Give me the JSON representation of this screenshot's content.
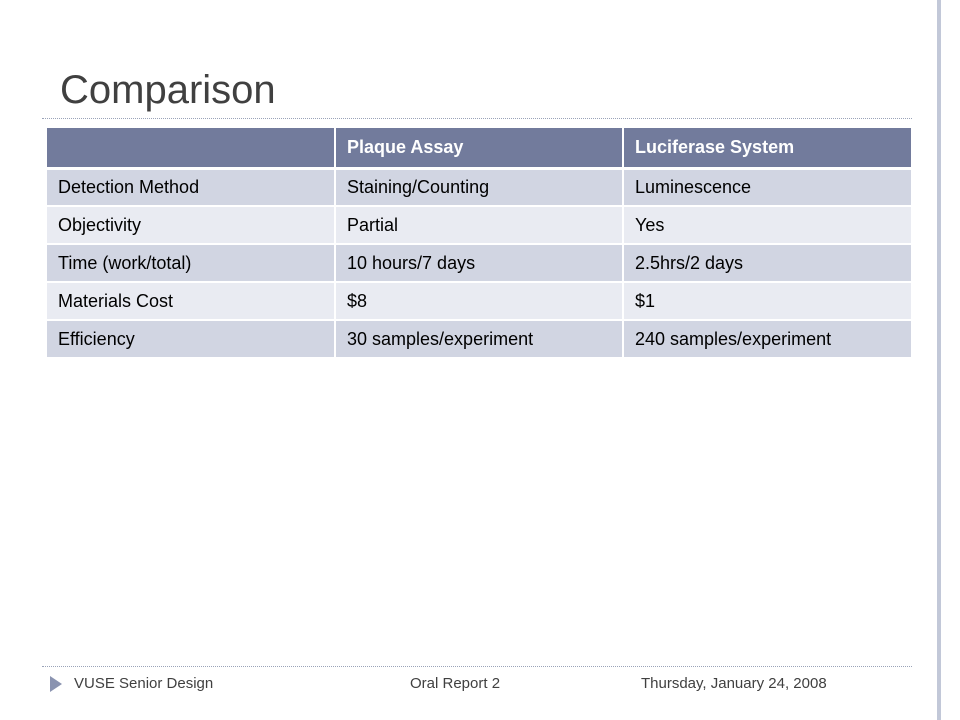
{
  "slide": {
    "title": "Comparison"
  },
  "table": {
    "headers": [
      "",
      "Plaque Assay",
      "Luciferase System"
    ],
    "rows": [
      [
        "Detection Method",
        "Staining/Counting",
        "Luminescence"
      ],
      [
        "Objectivity",
        "Partial",
        "Yes"
      ],
      [
        "Time (work/total)",
        "10 hours/7 days",
        "2.5hrs/2 days"
      ],
      [
        "Materials Cost",
        "$8",
        "$1"
      ],
      [
        "Efficiency",
        "30 samples/experiment",
        "240 samples/experiment"
      ]
    ]
  },
  "footer": {
    "left": "VUSE Senior Design",
    "center": "Oral Report 2",
    "right": "Thursday, January 24, 2008",
    "bullet_icon": "triangle-right-icon"
  },
  "colors": {
    "header_bg": "#727b9c",
    "row_odd_bg": "#d1d5e2",
    "row_even_bg": "#e9ebf2",
    "accent": "#c2c8d8"
  }
}
